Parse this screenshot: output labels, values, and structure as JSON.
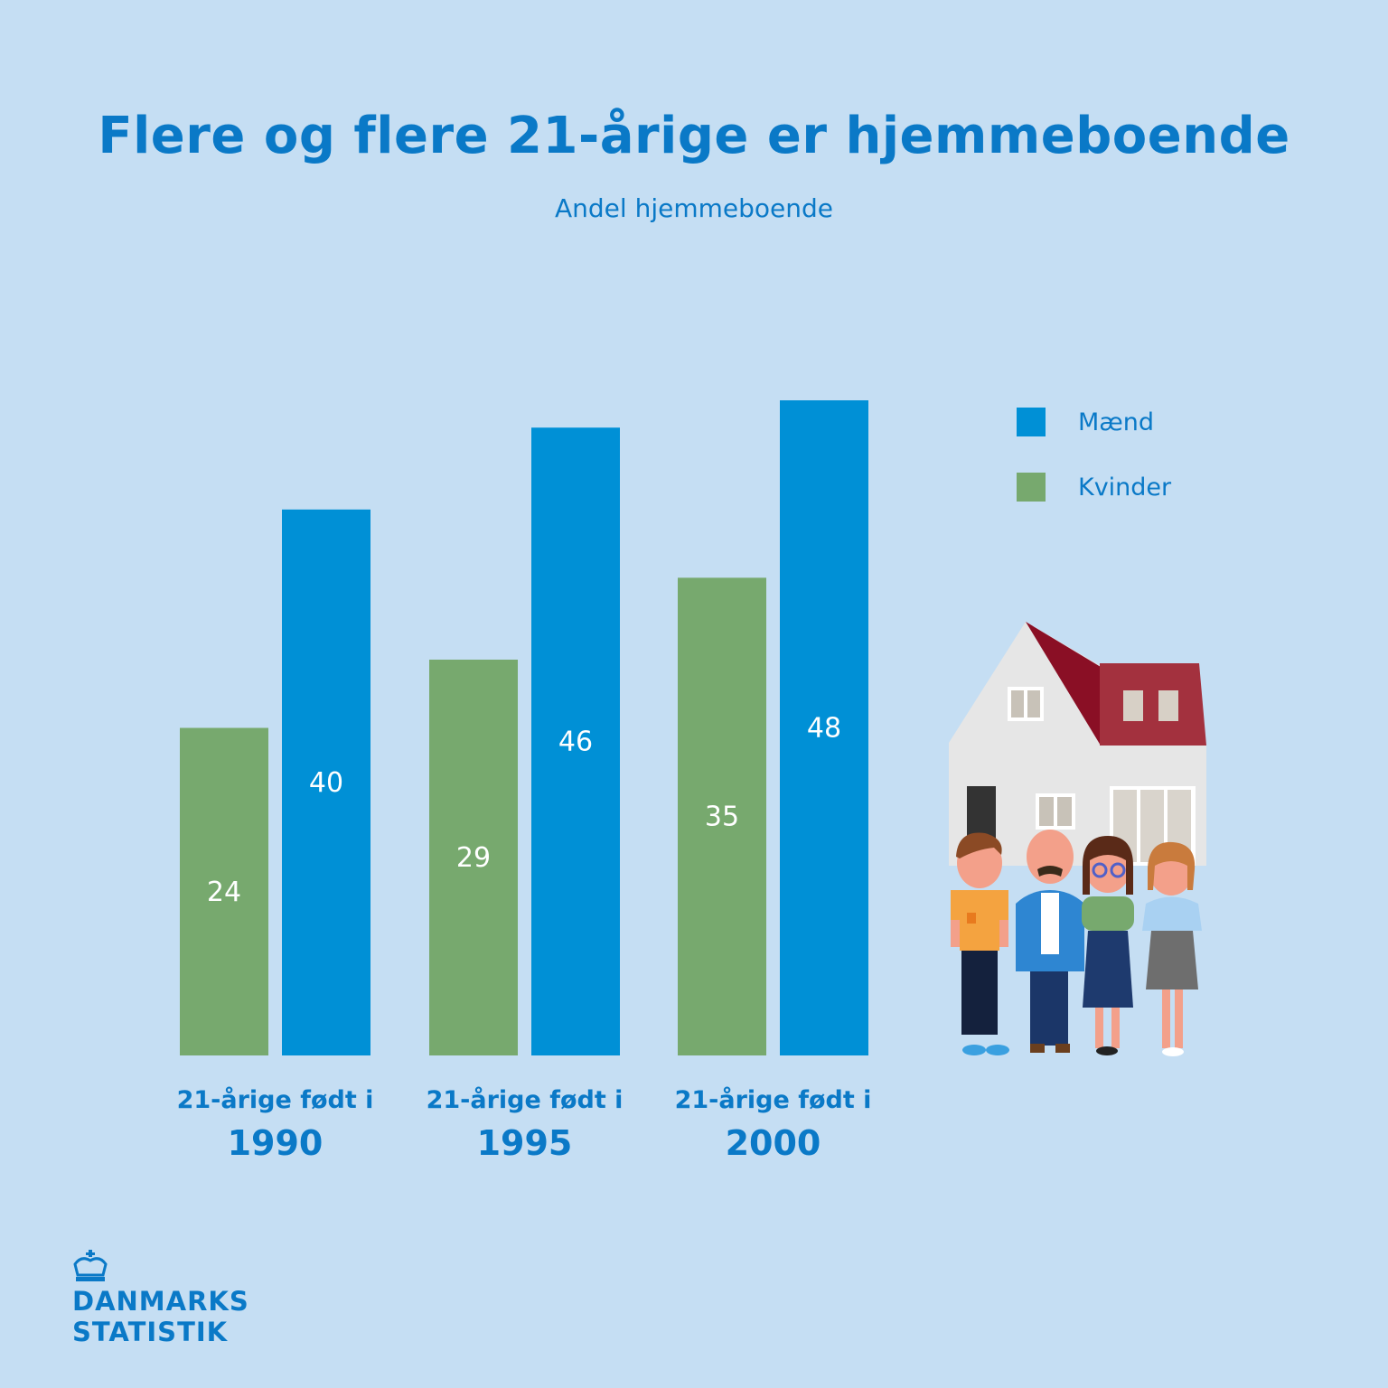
{
  "title": "Flere og flere 21-årige er hjemmeboende",
  "subtitle": "Andel hjemmeboende",
  "colors": {
    "background": "#c5def3",
    "maend": "#0090d6",
    "kvinder": "#77a96e",
    "text": "#0a79c7"
  },
  "chart_data": {
    "type": "bar",
    "title": "Flere og flere 21-årige er hjemmeboende",
    "subtitle": "Andel hjemmeboende",
    "category_prefix": "21-årige født i",
    "categories": [
      "1990",
      "1995",
      "2000"
    ],
    "series": [
      {
        "name": "Kvinder",
        "values": [
          24,
          29,
          35
        ],
        "color": "#77a96e"
      },
      {
        "name": "Mænd",
        "values": [
          40,
          46,
          48
        ],
        "color": "#0090d6"
      }
    ],
    "ylim": [
      0,
      48
    ],
    "grid": false,
    "legend": "right"
  },
  "legend": {
    "items": [
      {
        "label": "Mænd",
        "color": "#0090d6"
      },
      {
        "label": "Kvinder",
        "color": "#77a96e"
      }
    ]
  },
  "logo": {
    "line1": "DANMARKS",
    "line2": "STATISTIK",
    "icon": "crown-icon"
  }
}
